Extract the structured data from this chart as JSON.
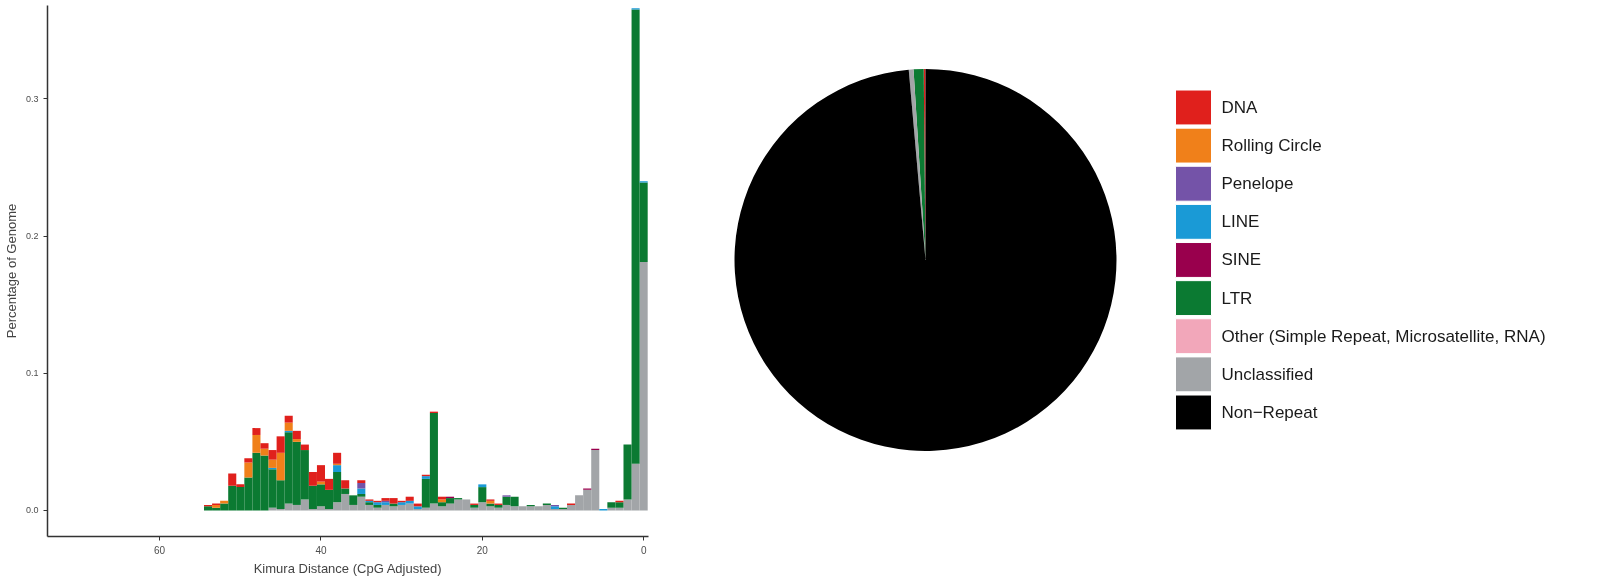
{
  "chart_data": [
    {
      "type": "bar",
      "stacked": true,
      "xlabel": "Kimura Distance (CpG Adjusted)",
      "ylabel": "Percentage of Genome",
      "xlim": [
        73.9,
        -0.6
      ],
      "xticks": [
        60,
        40,
        20,
        0
      ],
      "ylim": [
        -0.019,
        0.368
      ],
      "yticks": [
        {
          "value": 0,
          "label": "0.0"
        },
        {
          "value": 0.1,
          "label": "0.1"
        },
        {
          "value": 0.2,
          "label": "0.2"
        },
        {
          "value": 0.3,
          "label": "0.3"
        }
      ],
      "grid": false,
      "x": [
        54,
        53,
        52,
        51,
        50,
        49,
        48,
        47,
        46,
        45,
        44,
        43,
        42,
        41,
        40,
        39,
        38,
        37,
        36,
        35,
        34,
        33,
        32,
        31,
        30,
        29,
        28,
        27,
        26,
        25,
        24,
        23,
        22,
        21,
        20,
        19,
        18,
        17,
        16,
        15,
        14,
        13,
        12,
        11,
        10,
        9,
        8,
        7,
        6,
        5,
        4,
        3,
        2,
        1,
        0
      ],
      "series": [
        {
          "color": "#a2a5a8",
          "values": [
            0,
            0,
            0,
            0,
            0,
            0,
            0,
            0,
            0.002,
            0.001,
            0.005,
            0.004,
            0.008,
            0.001,
            0.003,
            0.001,
            0.006,
            0.012,
            0.004,
            0.01,
            0.004,
            0.002,
            0.004,
            0.003,
            0.004,
            0.005,
            0.001,
            0.002,
            0.005,
            0.003,
            0.005,
            0.008,
            0.008,
            0.002,
            0.006,
            0.003,
            0.002,
            0.004,
            0.003,
            0.003,
            0.003,
            0.003,
            0.004,
            0.001,
            0.001,
            0.004,
            0.011,
            0.015,
            0.044,
            0,
            0.002,
            0.002,
            0.008,
            0.034,
            0.181
          ]
        },
        {
          "color": "#0b7a32",
          "values": [
            0.003,
            0.002,
            0.005,
            0.018,
            0.017,
            0.024,
            0.042,
            0.04,
            0.028,
            0.021,
            0.052,
            0.046,
            0.036,
            0.017,
            0.016,
            0.014,
            0.022,
            0.004,
            0.007,
            0.002,
            0.002,
            0.002,
            0,
            0.002,
            0,
            0,
            0,
            0.021,
            0.066,
            0.003,
            0.004,
            0.001,
            0,
            0.002,
            0.011,
            0.002,
            0.002,
            0.006,
            0.007,
            0,
            0.001,
            0,
            0.001,
            0,
            0.001,
            0,
            0,
            0,
            0,
            0,
            0.004,
            0.004,
            0.04,
            0.331,
            0.058
          ]
        },
        {
          "color": "#99004d",
          "values": [
            0,
            0,
            0,
            0,
            0,
            0,
            0,
            0,
            0,
            0,
            0,
            0,
            0,
            0,
            0,
            0,
            0,
            0,
            0,
            0,
            0,
            0,
            0,
            0,
            0,
            0,
            0,
            0,
            0,
            0,
            0.001,
            0,
            0,
            0,
            0,
            0,
            0,
            0,
            0,
            0,
            0,
            0,
            0,
            0,
            0,
            0,
            0,
            0.001,
            0.001,
            0,
            0,
            0,
            0,
            0,
            0
          ]
        },
        {
          "color": "#1a9ad6",
          "values": [
            0,
            0,
            0,
            0,
            0,
            0,
            0,
            0,
            0.001,
            0,
            0.001,
            0,
            0,
            0,
            0,
            0,
            0.005,
            0,
            0,
            0.004,
            0.001,
            0.002,
            0.002,
            0,
            0.002,
            0.002,
            0.002,
            0.002,
            0,
            0,
            0,
            0,
            0,
            0,
            0.002,
            0,
            0,
            0,
            0,
            0,
            0,
            0,
            0,
            0.002,
            0,
            0,
            0,
            0,
            0,
            0.001,
            0,
            0,
            0,
            0.001,
            0.001
          ]
        },
        {
          "color": "#7453a8",
          "values": [
            0,
            0,
            0,
            0,
            0,
            0,
            0,
            0,
            0,
            0,
            0,
            0,
            0,
            0,
            0,
            0,
            0,
            0,
            0,
            0.004,
            0,
            0,
            0.001,
            0,
            0,
            0,
            0,
            0,
            0,
            0,
            0,
            0,
            0,
            0,
            0,
            0,
            0,
            0.001,
            0,
            0,
            0,
            0,
            0,
            0.001,
            0,
            0,
            0,
            0,
            0,
            0,
            0,
            0,
            0,
            0,
            0
          ]
        },
        {
          "color": "#f0801a",
          "values": [
            0,
            0.002,
            0.002,
            0,
            0,
            0.011,
            0.013,
            0.005,
            0.006,
            0.02,
            0.006,
            0.002,
            0,
            0,
            0.002,
            0,
            0.001,
            0,
            0,
            0,
            0,
            0,
            0,
            0,
            0,
            0,
            0,
            0,
            0,
            0.002,
            0,
            0,
            0,
            0,
            0,
            0.002,
            0,
            0,
            0,
            0,
            0,
            0,
            0,
            0,
            0,
            0,
            0,
            0,
            0,
            0,
            0,
            0,
            0,
            0,
            0
          ]
        },
        {
          "color": "#e0201c",
          "values": [
            0.001,
            0.001,
            0,
            0.009,
            0.002,
            0.003,
            0.005,
            0.004,
            0.007,
            0.012,
            0.005,
            0.006,
            0.004,
            0.01,
            0.012,
            0.008,
            0.008,
            0.006,
            0,
            0.002,
            0.001,
            0.001,
            0.002,
            0.004,
            0.001,
            0.003,
            0.002,
            0.001,
            0.001,
            0.002,
            0,
            0,
            0,
            0.001,
            0,
            0.001,
            0.001,
            0,
            0,
            0,
            0,
            0,
            0,
            0,
            0,
            0.001,
            0,
            0,
            0,
            0,
            0,
            0.001,
            0,
            0,
            0
          ]
        }
      ]
    },
    {
      "type": "pie",
      "legend": "right",
      "categories": [
        "DNA",
        "Rolling Circle",
        "Penelope",
        "LINE",
        "SINE",
        "LTR",
        "Other (Simple Repeat, Microsatellite, RNA)",
        "Unclassified",
        "Non−Repeat"
      ],
      "values": [
        0.15,
        0,
        0,
        0,
        0,
        0.85,
        0,
        0.4,
        98.6
      ],
      "colors": [
        "#e0201c",
        "#f0801a",
        "#7453a8",
        "#1a9ad6",
        "#99004d",
        "#0b7a32",
        "#f2a7ba",
        "#a2a5a8",
        "#000000"
      ]
    }
  ]
}
